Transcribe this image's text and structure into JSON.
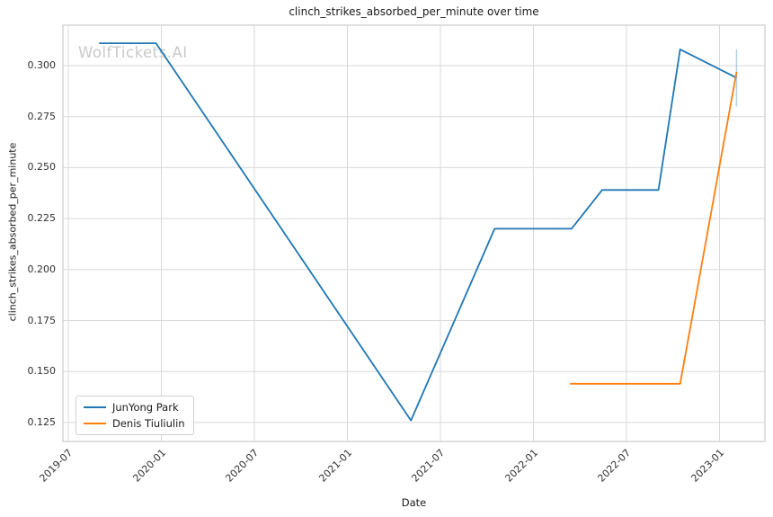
{
  "chart_data": {
    "type": "line",
    "title": "clinch_strikes_absorbed_per_minute over time",
    "xlabel": "Date",
    "ylabel": "clinch_strikes_absorbed_per_minute",
    "watermark": "WolfTickets.AI",
    "grid": true,
    "x_ticks": [
      "2019-07",
      "2020-01",
      "2020-07",
      "2021-01",
      "2021-07",
      "2022-01",
      "2022-07",
      "2023-01"
    ],
    "y_ticks": [
      0.125,
      0.15,
      0.175,
      0.2,
      0.225,
      0.25,
      0.275,
      0.3
    ],
    "y_tick_labels": [
      "0.125",
      "0.150",
      "0.175",
      "0.200",
      "0.225",
      "0.250",
      "0.275",
      "0.300"
    ],
    "ylim": [
      0.116,
      0.32
    ],
    "xlim": [
      "2019-06",
      "2023-03"
    ],
    "legend": {
      "position": "lower left",
      "entries": [
        {
          "label": "JunYong Park",
          "color": "#1f77b4"
        },
        {
          "label": "Denis Tiuliulin",
          "color": "#ff7f0e"
        }
      ]
    },
    "series": [
      {
        "name": "JunYong Park",
        "color": "#1f77b4",
        "x": [
          "2019-08-31",
          "2019-12-21",
          "2021-05-04",
          "2021-10-16",
          "2022-03-15",
          "2022-05-14",
          "2022-09-03",
          "2022-10-15",
          "2023-02-04"
        ],
        "y": [
          0.311,
          0.311,
          0.126,
          0.22,
          0.22,
          0.239,
          0.239,
          0.308,
          0.294
        ]
      },
      {
        "name": "Denis Tiuliulin",
        "color": "#ff7f0e",
        "x": [
          "2022-03-12",
          "2022-10-15",
          "2023-02-04"
        ],
        "y": [
          0.144,
          0.144,
          0.297
        ]
      }
    ],
    "error_bar": {
      "series": "JunYong Park",
      "x": "2023-02-04",
      "y_low": 0.28,
      "y_high": 0.308,
      "color": "rgba(31,119,180,0.35)"
    },
    "colors": {
      "grid": "#d9d9d9",
      "plot_border": "#cccccc",
      "series_blue": "#1f77b4",
      "series_orange": "#ff7f0e",
      "watermark": "#c9c9c9"
    }
  }
}
